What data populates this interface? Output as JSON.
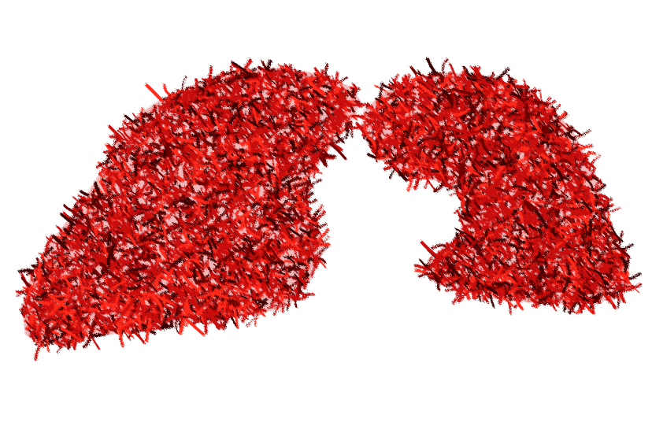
{
  "scene": {
    "background_color": "#ffffff",
    "vessel_colors": {
      "base": "#c80a0a",
      "highlight": "#ff2a1a",
      "shadow": "#6e0202",
      "deep": "#3c0000"
    },
    "objects": [
      {
        "name": "left-lung-vasculature"
      },
      {
        "name": "right-lung-vasculature"
      }
    ]
  }
}
